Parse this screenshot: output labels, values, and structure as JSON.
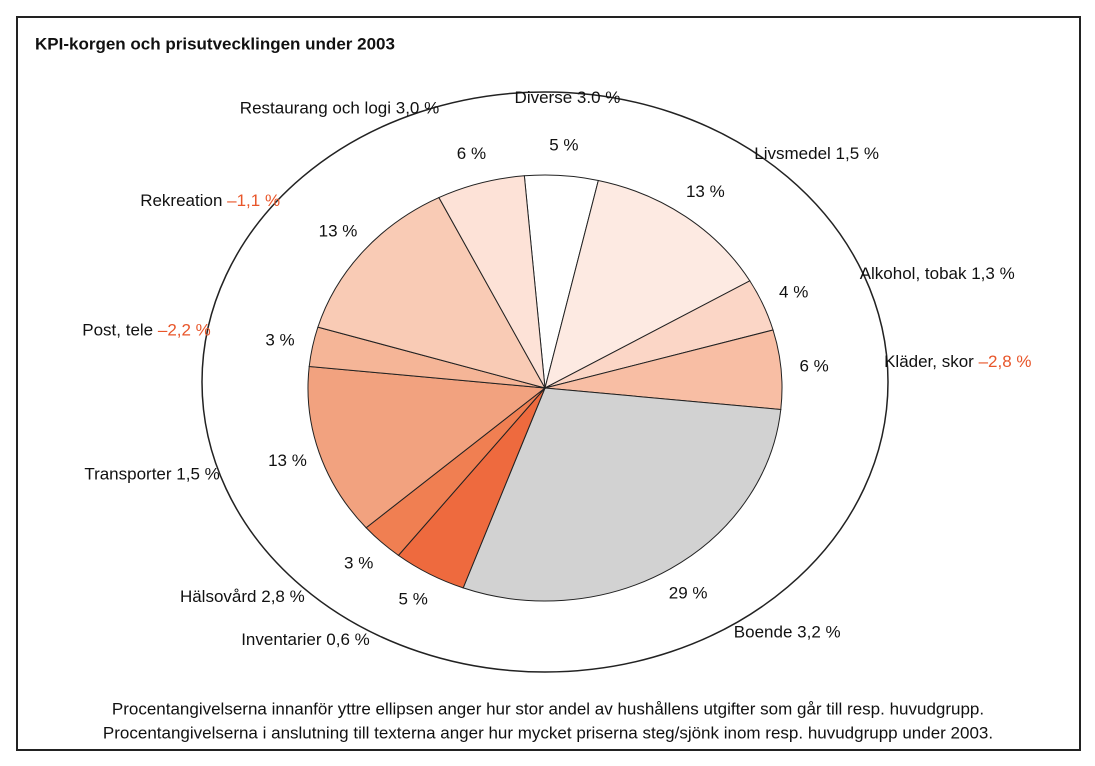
{
  "chart_data": {
    "type": "pie",
    "title": "KPI-korgen och prisutvecklingen under 2003",
    "categories": [
      "Diverse",
      "Livsmedel",
      "Alkohol, tobak",
      "Kläder, skor",
      "Boende",
      "Inventarier",
      "Hälsovård",
      "Transporter",
      "Post, tele",
      "Rekreation",
      "Restaurang och logi"
    ],
    "values": [
      5,
      13,
      4,
      6,
      29,
      5,
      3,
      13,
      3,
      13,
      6
    ],
    "value_labels": [
      "5 %",
      "13 %",
      "4 %",
      "6 %",
      "29 %",
      "5 %",
      "3 %",
      "13 %",
      "3 %",
      "13 %",
      "6 %"
    ],
    "colors": [
      "#ffffff",
      "#fdeae2",
      "#fbd6c6",
      "#f8bea4",
      "#d2d2d2",
      "#ee6a3e",
      "#f07f52",
      "#f2a27f",
      "#f5b597",
      "#f9cbb5",
      "#fde2d7"
    ],
    "price_change": [
      3.0,
      1.5,
      1.3,
      -2.8,
      3.2,
      0.6,
      2.8,
      1.5,
      -2.2,
      -1.1,
      3.0
    ],
    "price_change_labels": [
      "3.0 %",
      "1,5 %",
      "1,3 %",
      "–2,8 %",
      "3,2 %",
      "0,6 %",
      "2,8 %",
      "1,5 %",
      "–2,2 %",
      "–1,1 %",
      "3,0 %"
    ],
    "negative_color": "#e8562a",
    "notes": [
      "Procentangivelserna innanför yttre ellipsen anger hur stor andel av hushållens utgifter som går till resp. huvudgrupp.",
      "Procentangivelserna i anslutning till texterna anger hur mycket priserna steg/sjönk inom resp. huvudgrupp under 2003."
    ]
  }
}
